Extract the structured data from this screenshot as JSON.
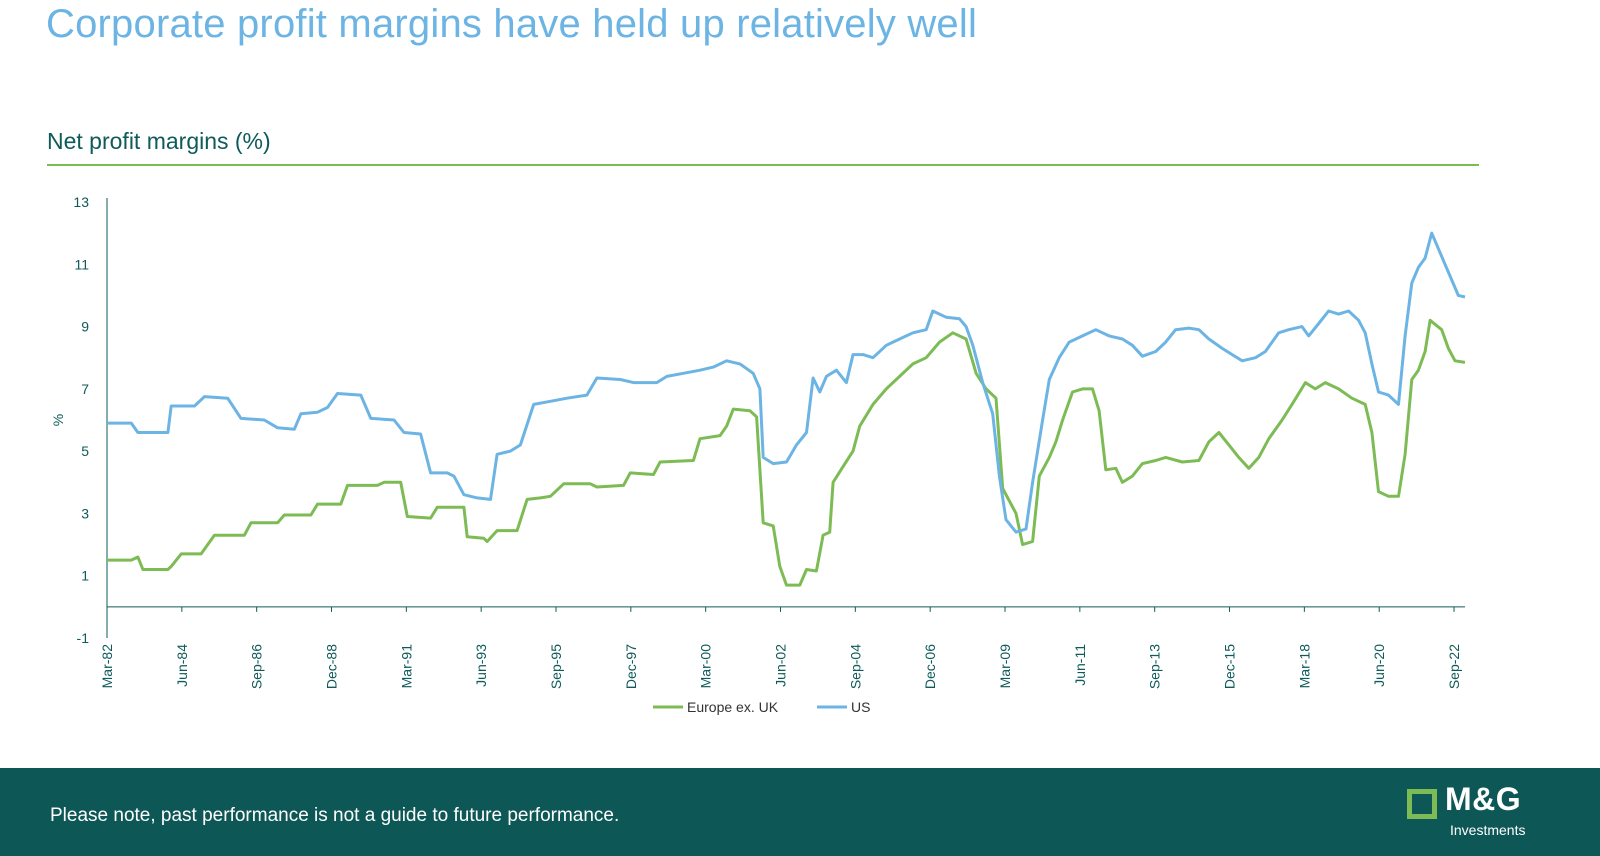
{
  "slide": {
    "title": "Corporate profit margins have held up relatively well",
    "footer_note": "Please note, past performance is not a guide to future performance.",
    "logo_text": "M&G",
    "logo_subtext": "Investments"
  },
  "chart_data": {
    "type": "line",
    "title": "Net profit margins (%)",
    "xlabel": "",
    "ylabel": "%",
    "ylim": [
      -1,
      13
    ],
    "yticks": [
      -1,
      1,
      3,
      5,
      7,
      9,
      11,
      13
    ],
    "xlim": [
      1982.17,
      2023.0
    ],
    "xticks": [
      {
        "label": "Mar-82",
        "value": 1982.17
      },
      {
        "label": "Jun-84",
        "value": 1984.42
      },
      {
        "label": "Sep-86",
        "value": 1986.67
      },
      {
        "label": "Dec-88",
        "value": 1988.92
      },
      {
        "label": "Mar-91",
        "value": 1991.17
      },
      {
        "label": "Jun-93",
        "value": 1993.42
      },
      {
        "label": "Sep-95",
        "value": 1995.67
      },
      {
        "label": "Dec-97",
        "value": 1997.92
      },
      {
        "label": "Mar-00",
        "value": 2000.17
      },
      {
        "label": "Jun-02",
        "value": 2002.42
      },
      {
        "label": "Sep-04",
        "value": 2004.67
      },
      {
        "label": "Dec-06",
        "value": 2006.92
      },
      {
        "label": "Mar-09",
        "value": 2009.17
      },
      {
        "label": "Jun-11",
        "value": 2011.42
      },
      {
        "label": "Sep-13",
        "value": 2013.67
      },
      {
        "label": "Dec-15",
        "value": 2015.92
      },
      {
        "label": "Mar-18",
        "value": 2018.17
      },
      {
        "label": "Jun-20",
        "value": 2020.42
      },
      {
        "label": "Sep-22",
        "value": 2022.67
      }
    ],
    "legend_position": "bottom",
    "grid": false,
    "series": [
      {
        "name": "Europe ex. UK",
        "color": "#7dbb54",
        "points": [
          [
            1982.17,
            1.5
          ],
          [
            1982.9,
            1.5
          ],
          [
            1983.1,
            1.6
          ],
          [
            1983.25,
            1.2
          ],
          [
            1984.0,
            1.2
          ],
          [
            1984.1,
            1.3
          ],
          [
            1984.4,
            1.7
          ],
          [
            1985.0,
            1.7
          ],
          [
            1985.4,
            2.3
          ],
          [
            1986.3,
            2.3
          ],
          [
            1986.5,
            2.7
          ],
          [
            1987.3,
            2.7
          ],
          [
            1987.5,
            2.95
          ],
          [
            1988.3,
            2.95
          ],
          [
            1988.5,
            3.3
          ],
          [
            1989.2,
            3.3
          ],
          [
            1989.4,
            3.9
          ],
          [
            1990.3,
            3.9
          ],
          [
            1990.5,
            4.0
          ],
          [
            1991.0,
            4.0
          ],
          [
            1991.2,
            2.9
          ],
          [
            1991.9,
            2.85
          ],
          [
            1992.1,
            3.2
          ],
          [
            1992.9,
            3.2
          ],
          [
            1993.0,
            2.25
          ],
          [
            1993.5,
            2.2
          ],
          [
            1993.6,
            2.1
          ],
          [
            1993.9,
            2.45
          ],
          [
            1994.5,
            2.45
          ],
          [
            1994.8,
            3.45
          ],
          [
            1995.2,
            3.5
          ],
          [
            1995.5,
            3.55
          ],
          [
            1995.9,
            3.95
          ],
          [
            1996.7,
            3.95
          ],
          [
            1996.9,
            3.85
          ],
          [
            1997.7,
            3.9
          ],
          [
            1997.9,
            4.3
          ],
          [
            1998.6,
            4.25
          ],
          [
            1998.8,
            4.65
          ],
          [
            1999.8,
            4.7
          ],
          [
            2000.0,
            5.4
          ],
          [
            2000.6,
            5.5
          ],
          [
            2000.8,
            5.8
          ],
          [
            2001.0,
            6.35
          ],
          [
            2001.5,
            6.3
          ],
          [
            2001.7,
            6.1
          ],
          [
            2001.9,
            2.7
          ],
          [
            2002.2,
            2.6
          ],
          [
            2002.4,
            1.3
          ],
          [
            2002.6,
            0.7
          ],
          [
            2003.0,
            0.7
          ],
          [
            2003.2,
            1.2
          ],
          [
            2003.5,
            1.15
          ],
          [
            2003.7,
            2.3
          ],
          [
            2003.9,
            2.4
          ],
          [
            2004.0,
            4.0
          ],
          [
            2004.3,
            4.5
          ],
          [
            2004.6,
            5.0
          ],
          [
            2004.8,
            5.8
          ],
          [
            2005.2,
            6.5
          ],
          [
            2005.6,
            7.0
          ],
          [
            2006.0,
            7.4
          ],
          [
            2006.4,
            7.8
          ],
          [
            2006.8,
            8.0
          ],
          [
            2007.2,
            8.5
          ],
          [
            2007.6,
            8.8
          ],
          [
            2008.0,
            8.6
          ],
          [
            2008.3,
            7.5
          ],
          [
            2008.6,
            7.0
          ],
          [
            2008.9,
            6.7
          ],
          [
            2009.1,
            3.8
          ],
          [
            2009.5,
            3.0
          ],
          [
            2009.7,
            2.0
          ],
          [
            2010.0,
            2.1
          ],
          [
            2010.2,
            4.2
          ],
          [
            2010.5,
            4.8
          ],
          [
            2010.7,
            5.3
          ],
          [
            2010.9,
            6.0
          ],
          [
            2011.2,
            6.9
          ],
          [
            2011.5,
            7.0
          ],
          [
            2011.8,
            7.0
          ],
          [
            2012.0,
            6.3
          ],
          [
            2012.2,
            4.4
          ],
          [
            2012.5,
            4.45
          ],
          [
            2012.7,
            4.0
          ],
          [
            2013.0,
            4.2
          ],
          [
            2013.3,
            4.6
          ],
          [
            2013.7,
            4.7
          ],
          [
            2014.0,
            4.8
          ],
          [
            2014.5,
            4.65
          ],
          [
            2015.0,
            4.7
          ],
          [
            2015.3,
            5.3
          ],
          [
            2015.6,
            5.6
          ],
          [
            2015.9,
            5.2
          ],
          [
            2016.2,
            4.8
          ],
          [
            2016.5,
            4.45
          ],
          [
            2016.8,
            4.8
          ],
          [
            2017.1,
            5.4
          ],
          [
            2017.5,
            6.0
          ],
          [
            2017.8,
            6.5
          ],
          [
            2018.2,
            7.2
          ],
          [
            2018.5,
            7.0
          ],
          [
            2018.8,
            7.2
          ],
          [
            2019.2,
            7.0
          ],
          [
            2019.6,
            6.7
          ],
          [
            2020.0,
            6.5
          ],
          [
            2020.2,
            5.6
          ],
          [
            2020.4,
            3.7
          ],
          [
            2020.7,
            3.55
          ],
          [
            2021.0,
            3.55
          ],
          [
            2021.2,
            4.9
          ],
          [
            2021.4,
            7.3
          ],
          [
            2021.6,
            7.6
          ],
          [
            2021.8,
            8.2
          ],
          [
            2021.95,
            9.2
          ],
          [
            2022.3,
            8.9
          ],
          [
            2022.5,
            8.3
          ],
          [
            2022.7,
            7.9
          ],
          [
            2023.0,
            7.85
          ]
        ]
      },
      {
        "name": "US",
        "color": "#6cb4e4",
        "points": [
          [
            1982.17,
            5.9
          ],
          [
            1982.9,
            5.9
          ],
          [
            1983.1,
            5.6
          ],
          [
            1984.0,
            5.6
          ],
          [
            1984.1,
            6.45
          ],
          [
            1984.8,
            6.45
          ],
          [
            1985.1,
            6.75
          ],
          [
            1985.8,
            6.7
          ],
          [
            1986.2,
            6.05
          ],
          [
            1986.9,
            6.0
          ],
          [
            1987.3,
            5.75
          ],
          [
            1987.8,
            5.7
          ],
          [
            1988.0,
            6.2
          ],
          [
            1988.5,
            6.25
          ],
          [
            1988.8,
            6.4
          ],
          [
            1989.1,
            6.85
          ],
          [
            1989.8,
            6.8
          ],
          [
            1990.1,
            6.05
          ],
          [
            1990.8,
            6.0
          ],
          [
            1991.1,
            5.6
          ],
          [
            1991.6,
            5.55
          ],
          [
            1991.9,
            4.3
          ],
          [
            1992.4,
            4.3
          ],
          [
            1992.6,
            4.2
          ],
          [
            1992.9,
            3.6
          ],
          [
            1993.3,
            3.5
          ],
          [
            1993.7,
            3.45
          ],
          [
            1993.9,
            4.9
          ],
          [
            1994.3,
            5.0
          ],
          [
            1994.6,
            5.2
          ],
          [
            1995.0,
            6.5
          ],
          [
            1995.5,
            6.6
          ],
          [
            1996.0,
            6.7
          ],
          [
            1996.6,
            6.8
          ],
          [
            1996.9,
            7.35
          ],
          [
            1997.6,
            7.3
          ],
          [
            1998.0,
            7.2
          ],
          [
            1998.7,
            7.2
          ],
          [
            1999.0,
            7.4
          ],
          [
            1999.5,
            7.5
          ],
          [
            2000.0,
            7.6
          ],
          [
            2000.4,
            7.7
          ],
          [
            2000.8,
            7.9
          ],
          [
            2001.2,
            7.8
          ],
          [
            2001.6,
            7.5
          ],
          [
            2001.8,
            7.0
          ],
          [
            2001.9,
            4.8
          ],
          [
            2002.2,
            4.6
          ],
          [
            2002.6,
            4.65
          ],
          [
            2002.9,
            5.2
          ],
          [
            2003.2,
            5.6
          ],
          [
            2003.4,
            7.35
          ],
          [
            2003.6,
            6.9
          ],
          [
            2003.8,
            7.4
          ],
          [
            2004.1,
            7.6
          ],
          [
            2004.4,
            7.2
          ],
          [
            2004.6,
            8.1
          ],
          [
            2004.9,
            8.1
          ],
          [
            2005.2,
            8.0
          ],
          [
            2005.6,
            8.4
          ],
          [
            2006.0,
            8.6
          ],
          [
            2006.4,
            8.8
          ],
          [
            2006.8,
            8.9
          ],
          [
            2007.0,
            9.5
          ],
          [
            2007.4,
            9.3
          ],
          [
            2007.8,
            9.25
          ],
          [
            2008.0,
            9.0
          ],
          [
            2008.2,
            8.4
          ],
          [
            2008.5,
            7.2
          ],
          [
            2008.8,
            6.2
          ],
          [
            2009.0,
            4.2
          ],
          [
            2009.2,
            2.8
          ],
          [
            2009.5,
            2.4
          ],
          [
            2009.8,
            2.5
          ],
          [
            2010.0,
            4.0
          ],
          [
            2010.3,
            6.0
          ],
          [
            2010.5,
            7.3
          ],
          [
            2010.8,
            8.0
          ],
          [
            2011.1,
            8.5
          ],
          [
            2011.5,
            8.7
          ],
          [
            2011.9,
            8.9
          ],
          [
            2012.3,
            8.7
          ],
          [
            2012.7,
            8.6
          ],
          [
            2013.0,
            8.4
          ],
          [
            2013.3,
            8.05
          ],
          [
            2013.7,
            8.2
          ],
          [
            2014.0,
            8.5
          ],
          [
            2014.3,
            8.9
          ],
          [
            2014.7,
            8.95
          ],
          [
            2015.0,
            8.9
          ],
          [
            2015.3,
            8.6
          ],
          [
            2015.7,
            8.3
          ],
          [
            2016.0,
            8.1
          ],
          [
            2016.3,
            7.9
          ],
          [
            2016.7,
            8.0
          ],
          [
            2017.0,
            8.2
          ],
          [
            2017.4,
            8.8
          ],
          [
            2017.7,
            8.9
          ],
          [
            2018.1,
            9.0
          ],
          [
            2018.3,
            8.7
          ],
          [
            2018.6,
            9.1
          ],
          [
            2018.9,
            9.5
          ],
          [
            2019.2,
            9.4
          ],
          [
            2019.5,
            9.5
          ],
          [
            2019.8,
            9.2
          ],
          [
            2020.0,
            8.8
          ],
          [
            2020.2,
            7.8
          ],
          [
            2020.4,
            6.9
          ],
          [
            2020.7,
            6.8
          ],
          [
            2021.0,
            6.5
          ],
          [
            2021.2,
            8.7
          ],
          [
            2021.4,
            10.4
          ],
          [
            2021.6,
            10.9
          ],
          [
            2021.8,
            11.2
          ],
          [
            2022.0,
            12.0
          ],
          [
            2022.2,
            11.5
          ],
          [
            2022.4,
            11.0
          ],
          [
            2022.6,
            10.5
          ],
          [
            2022.8,
            10.0
          ],
          [
            2023.0,
            9.95
          ]
        ]
      }
    ]
  }
}
